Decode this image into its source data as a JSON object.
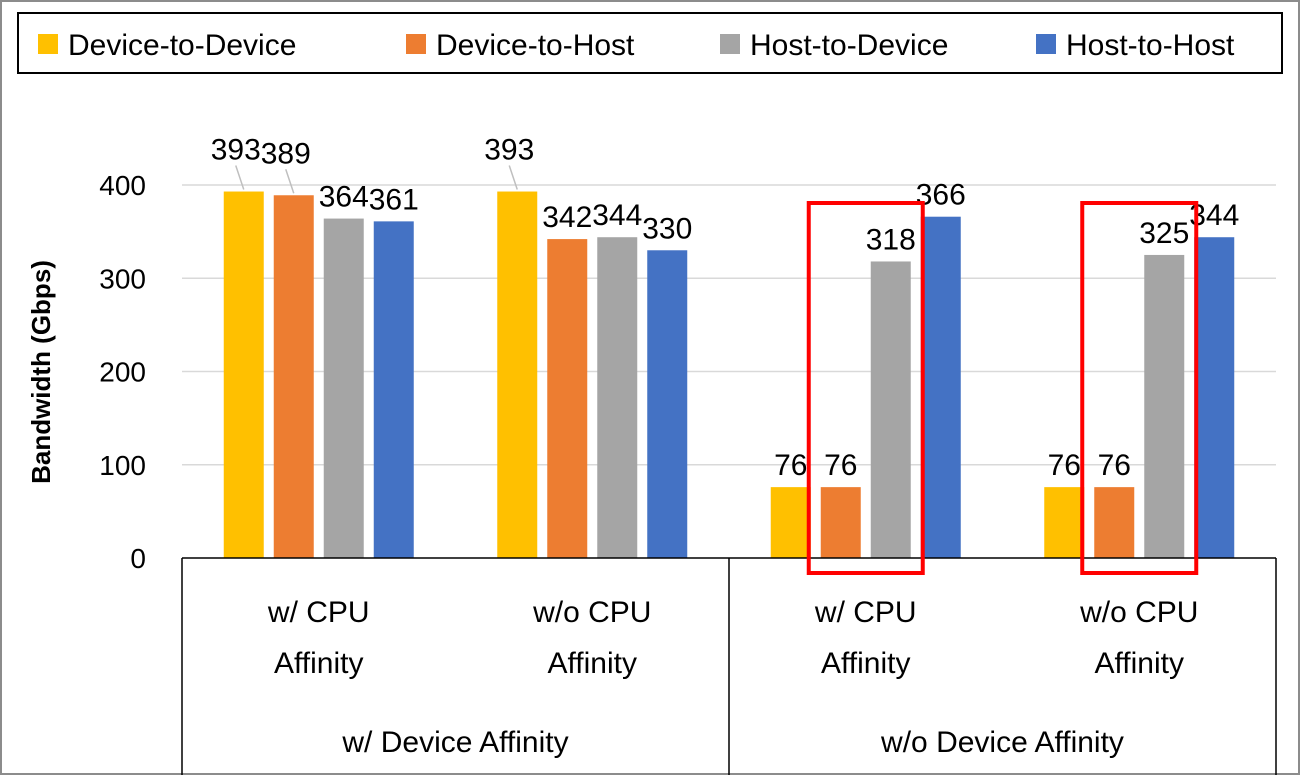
{
  "chart_data": {
    "type": "bar",
    "title": "",
    "xlabel": "",
    "ylabel": "Bandwidth (Gbps)",
    "ylim": [
      0,
      400
    ],
    "yticks": [
      0,
      100,
      200,
      300,
      400
    ],
    "grid": true,
    "legend_position": "top",
    "categories": [
      {
        "label_line1": "w/ CPU",
        "label_line2": "Affinity",
        "group": "w/ Device Affinity"
      },
      {
        "label_line1": "w/o CPU",
        "label_line2": "Affinity",
        "group": "w/ Device Affinity"
      },
      {
        "label_line1": "w/ CPU",
        "label_line2": "Affinity",
        "group": "w/o Device Affinity"
      },
      {
        "label_line1": "w/o CPU",
        "label_line2": "Affinity",
        "group": "w/o Device Affinity"
      }
    ],
    "groups": [
      "w/ Device Affinity",
      "w/o Device Affinity"
    ],
    "series": [
      {
        "name": "Device-to-Device",
        "color": "#FFC000",
        "values": [
          393,
          393,
          76,
          76
        ]
      },
      {
        "name": "Device-to-Host",
        "color": "#ED7D31",
        "values": [
          389,
          342,
          76,
          76
        ]
      },
      {
        "name": "Host-to-Device",
        "color": "#A5A5A5",
        "values": [
          364,
          344,
          318,
          325
        ]
      },
      {
        "name": "Host-to-Host",
        "color": "#4472C4",
        "values": [
          361,
          330,
          366,
          344
        ]
      }
    ],
    "highlights": [
      {
        "category_index": 2,
        "series": [
          "Device-to-Host",
          "Host-to-Device"
        ],
        "color": "#FF0000"
      },
      {
        "category_index": 3,
        "series": [
          "Device-to-Host",
          "Host-to-Device"
        ],
        "color": "#FF0000"
      }
    ]
  }
}
